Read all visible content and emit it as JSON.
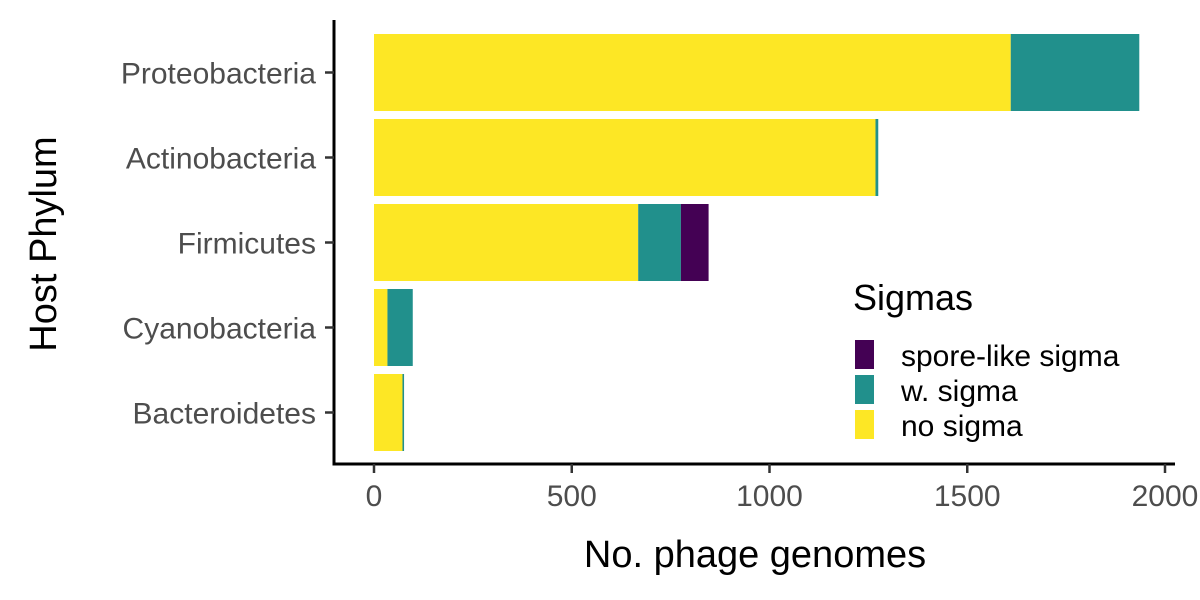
{
  "chart_data": {
    "type": "bar",
    "orientation": "horizontal",
    "stacked": true,
    "categories": [
      "Proteobacteria",
      "Actinobacteria",
      "Firmicutes",
      "Cyanobacteria",
      "Bacteroidetes"
    ],
    "series": [
      {
        "name": "no sigma",
        "values": [
          1610,
          1268,
          668,
          34,
          72
        ],
        "color": "#FDE725"
      },
      {
        "name": "w. sigma",
        "values": [
          325,
          7,
          108,
          64,
          4
        ],
        "color": "#21908C"
      },
      {
        "name": "spore-like sigma",
        "values": [
          0,
          0,
          70,
          0,
          0
        ],
        "color": "#440154"
      }
    ],
    "xlabel": "No. phage genomes",
    "ylabel": "Host Phylum",
    "xlim": [
      -100,
      2020
    ],
    "xticks": [
      0,
      500,
      1000,
      1500,
      2000
    ],
    "grid": false,
    "legend": {
      "title": "Sigmas",
      "position": "inside-bottom-right",
      "order": [
        "spore-like sigma",
        "w. sigma",
        "no sigma"
      ]
    }
  }
}
